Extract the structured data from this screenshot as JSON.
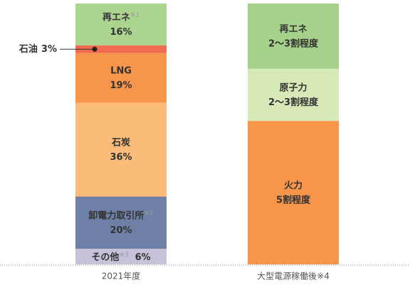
{
  "chart_data": {
    "type": "stacked_column",
    "ylim": [
      0,
      100
    ],
    "categories": [
      "2021年度",
      "大型電源稼働後※4"
    ],
    "columns": [
      {
        "segments": [
          {
            "name": "その他",
            "note": "※3",
            "value": 6,
            "value_label": "6%",
            "color": "#c8c1da",
            "label_style": "single-line"
          },
          {
            "name": "卸電力取引所",
            "note": "※2",
            "value": 20,
            "value_label": "20%",
            "color": "#6e80a5",
            "text_color": "#ffffff",
            "label_style": "stacked"
          },
          {
            "name": "石炭",
            "value": 36,
            "value_label": "36%",
            "color": "#fbbb79",
            "label_style": "stacked"
          },
          {
            "name": "LNG",
            "value": 19,
            "value_label": "19%",
            "color": "#f7954b",
            "label_style": "stacked"
          },
          {
            "name": "石油",
            "value": 3,
            "value_label": "3%",
            "color": "#f26b4f",
            "label_style": "outside"
          },
          {
            "name": "再エネ",
            "note": "※1",
            "value": 16,
            "value_label": "16%",
            "color": "#abd48f",
            "label_style": "stacked"
          }
        ]
      },
      {
        "segments": [
          {
            "name": "火力",
            "value": 55,
            "value_label": "5割程度",
            "color": "#f7954b",
            "label_style": "stacked"
          },
          {
            "name": "原子力",
            "value": 20,
            "value_label": "2〜3割程度",
            "color": "#d6e9b7",
            "label_style": "stacked"
          },
          {
            "name": "再エネ",
            "value": 25,
            "value_label": "2〜3割程度",
            "color": "#a5d18b",
            "label_style": "stacked"
          }
        ]
      }
    ]
  }
}
